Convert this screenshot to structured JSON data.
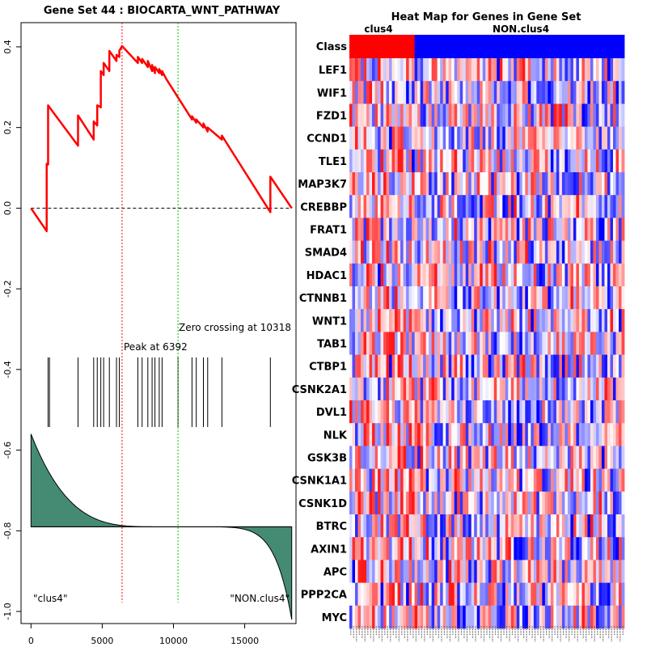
{
  "chart_data": [
    {
      "type": "line",
      "title": "Gene Set  44 : BIOCARTA_WNT_PATHWAY",
      "xlim": [
        -700,
        18600
      ],
      "ylim": [
        -1.03,
        0.46
      ],
      "xticks": [
        0,
        5000,
        10000,
        15000
      ],
      "yticks": [
        0.4,
        0.2,
        0.0,
        -0.2,
        -0.4,
        -0.6,
        -0.8,
        -1.0
      ],
      "ytick_labels": [
        "0.4",
        "0.2",
        "0.0",
        "-0.2",
        "-0.4",
        "-0.6",
        "-0.8",
        "-1.0"
      ],
      "es_curve": {
        "x": [
          0,
          1100,
          1100,
          1200,
          1200,
          1300,
          3300,
          3300,
          4400,
          4400,
          4650,
          4650,
          4900,
          4900,
          5100,
          5100,
          5500,
          5500,
          6000,
          6000,
          6200,
          6200,
          6392,
          7500,
          7500,
          7800,
          7800,
          8200,
          8200,
          8500,
          8500,
          8700,
          8700,
          9000,
          9000,
          9200,
          9200,
          9500,
          11300,
          11300,
          11600,
          11600,
          12100,
          12100,
          12400,
          12400,
          13400,
          13400,
          16800,
          16800,
          18300
        ],
        "y": [
          0.0,
          -0.057,
          0.11,
          0.108,
          0.255,
          0.25,
          0.155,
          0.23,
          0.17,
          0.215,
          0.205,
          0.255,
          0.25,
          0.34,
          0.33,
          0.36,
          0.34,
          0.39,
          0.365,
          0.38,
          0.375,
          0.39,
          0.402,
          0.36,
          0.375,
          0.36,
          0.37,
          0.35,
          0.365,
          0.34,
          0.355,
          0.335,
          0.35,
          0.335,
          0.345,
          0.33,
          0.34,
          0.32,
          0.22,
          0.228,
          0.212,
          0.22,
          0.2,
          0.21,
          0.19,
          0.2,
          0.17,
          0.18,
          -0.01,
          0.078,
          0.0
        ]
      },
      "hits": [
        1200,
        1300,
        3300,
        4400,
        4650,
        4900,
        5100,
        5500,
        6000,
        6200,
        7500,
        7800,
        8200,
        8500,
        8700,
        9000,
        9200,
        10318,
        11300,
        11600,
        12100,
        12400,
        13400,
        16800
      ],
      "rank_metric_top": -0.56,
      "rank_metric_zero": -0.79,
      "rank_metric_bottom": -1.02,
      "n_genes": 18300,
      "peak_x": 6392,
      "zero_cross_x": 10318,
      "colors": {
        "es": "#ff0000",
        "fill": "#458b74",
        "peak": "#ff0000",
        "zero": "#00c000"
      }
    },
    {
      "type": "heatmap",
      "title": "Heat Map for Genes in Gene Set",
      "class_label": "Class",
      "genes": [
        "LEF1",
        "WIF1",
        "FZD1",
        "CCND1",
        "TLE1",
        "MAP3K7",
        "CREBBP",
        "FRAT1",
        "SMAD4",
        "HDAC1",
        "CTNNB1",
        "WNT1",
        "TAB1",
        "CTBP1",
        "CSNK2A1",
        "DVL1",
        "NLK",
        "GSK3B",
        "CSNK1A1",
        "CSNK1D",
        "BTRC",
        "AXIN1",
        "APC",
        "PPP2CA",
        "MYC"
      ],
      "groups": [
        {
          "name": "clus4",
          "count": 23,
          "color": "#ff0000"
        },
        {
          "name": "NON.clus4",
          "count": 74,
          "color": "#0000ff"
        }
      ],
      "seed": 44
    }
  ],
  "labels": {
    "es_title": "Gene Set  44 : BIOCARTA_WNT_PATHWAY",
    "peak": "Peak at 6392",
    "zero_cross": "Zero crossing at 10318",
    "left_class": "\"clus4\"",
    "right_class": "\"NON.clus4\"",
    "hm_title": "Heat Map for Genes in Gene Set",
    "class_label": "Class",
    "group_a": "clus4",
    "group_b": "NON.clus4"
  }
}
